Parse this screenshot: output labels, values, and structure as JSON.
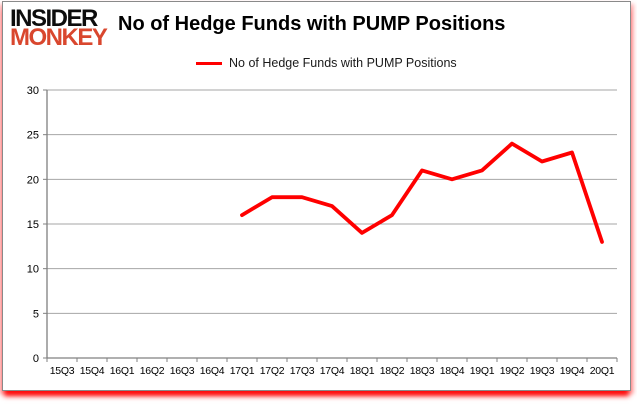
{
  "logo": {
    "line1": "INSIDER",
    "line2": "MONKEY"
  },
  "header": {
    "title": "No of Hedge Funds with PUMP Positions"
  },
  "legend": {
    "label": "No of Hedge Funds with PUMP Positions",
    "swatch_color": "#FF0000"
  },
  "colors": {
    "series_red": "#FF0000",
    "brand_orange": "#D9472E",
    "gridline_gray": "#A6A6A6",
    "axis_gray": "#808080",
    "label_black": "#000000"
  },
  "chart_data": {
    "type": "line",
    "title": "No of Hedge Funds with PUMP Positions",
    "categories": [
      "15Q3",
      "15Q4",
      "16Q1",
      "16Q2",
      "16Q3",
      "16Q4",
      "17Q1",
      "17Q2",
      "17Q3",
      "17Q4",
      "18Q1",
      "18Q2",
      "18Q3",
      "18Q4",
      "19Q1",
      "19Q2",
      "19Q3",
      "19Q4",
      "20Q1"
    ],
    "series": [
      {
        "name": "No of Hedge Funds with PUMP Positions",
        "color": "#FF0000",
        "values": [
          null,
          null,
          null,
          null,
          null,
          null,
          16,
          18,
          18,
          17,
          14,
          16,
          21,
          20,
          21,
          24,
          22,
          23,
          13
        ]
      }
    ],
    "xlabel": "",
    "ylabel": "",
    "ylim": [
      0,
      30
    ],
    "ytick_interval": 5,
    "yticks": [
      0,
      5,
      10,
      15,
      20,
      25,
      30
    ],
    "grid": "horizontal",
    "legend_position": "top"
  }
}
